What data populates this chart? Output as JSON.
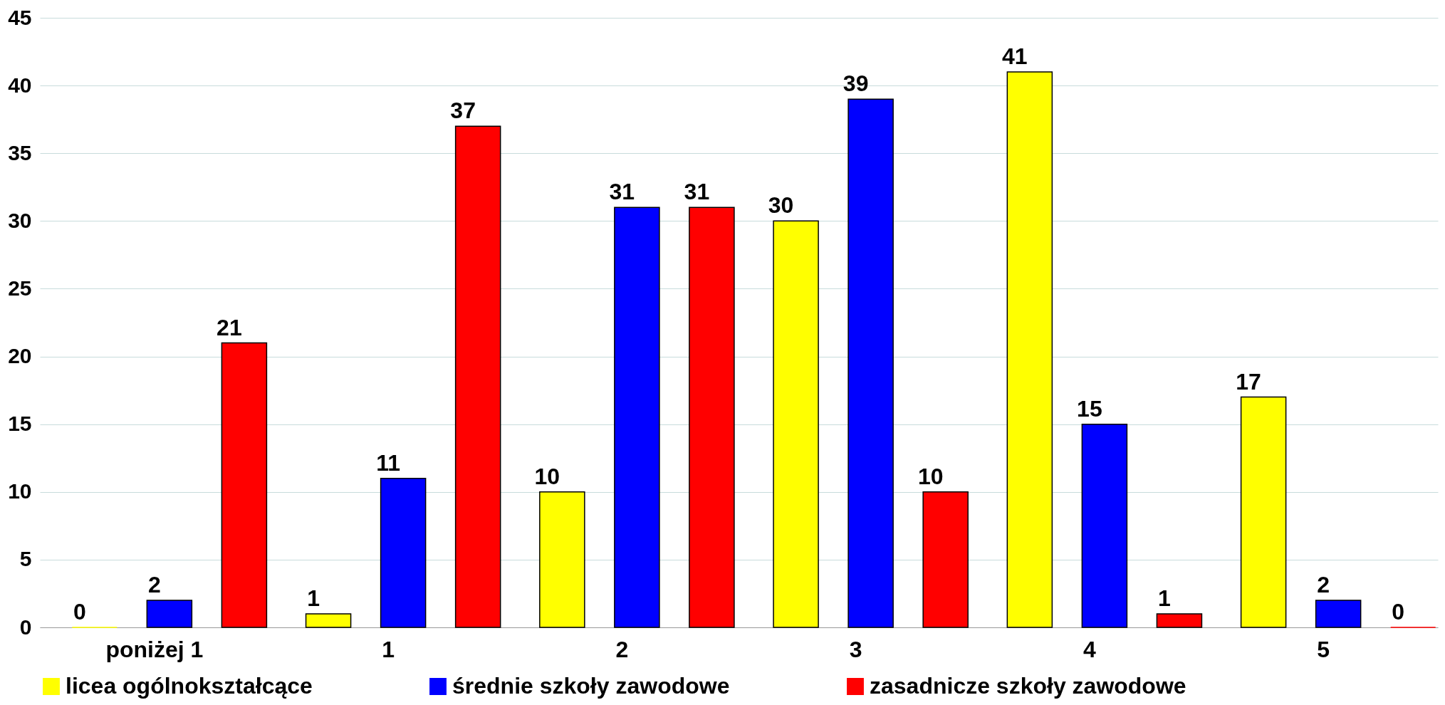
{
  "chart_data": {
    "type": "bar",
    "categories": [
      "poniżej 1",
      "1",
      "2",
      "3",
      "4",
      "5"
    ],
    "series": [
      {
        "name": "licea ogólnokształcące",
        "color": "#ffff00",
        "values": [
          0,
          1,
          10,
          30,
          41,
          17
        ]
      },
      {
        "name": "średnie szkoły zawodowe",
        "color": "#0000ff",
        "values": [
          2,
          11,
          31,
          39,
          15,
          2
        ]
      },
      {
        "name": "zasadnicze szkoły zawodowe",
        "color": "#ff0000",
        "values": [
          21,
          37,
          31,
          10,
          1,
          0
        ]
      }
    ],
    "ylim": [
      0,
      45
    ],
    "yticks": [
      0,
      5,
      10,
      15,
      20,
      25,
      30,
      35,
      40,
      45
    ],
    "grid": "y",
    "legend": "bottom",
    "data_labels": true
  }
}
